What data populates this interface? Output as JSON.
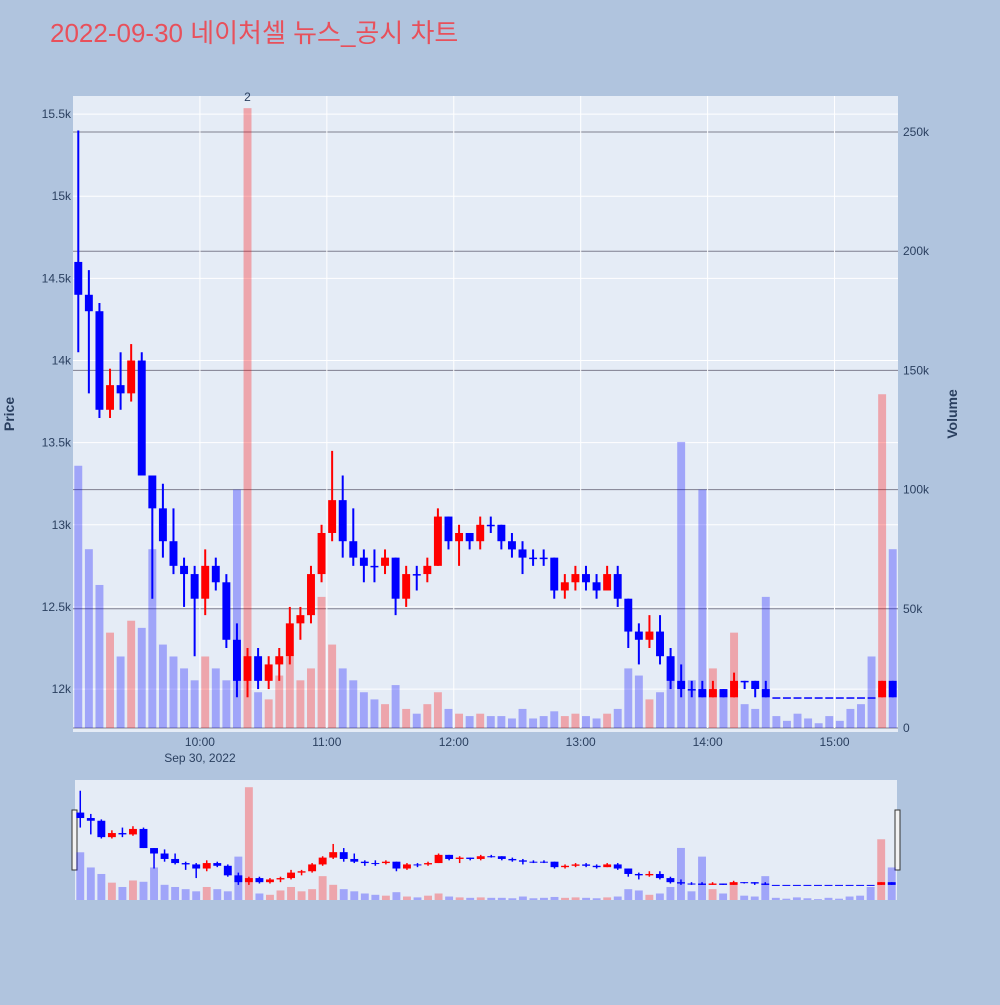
{
  "chart_data": {
    "type": "candlestick",
    "title": "2022-09-30 네이처셀 뉴스_공시 차트",
    "y_label": "Price",
    "y2_label": "Volume",
    "x_date_label": "Sep 30, 2022",
    "up_color": "#ff0000",
    "down_color": "#0000ff",
    "grid": true,
    "rangeslider": true,
    "x": [
      "09:00",
      "09:05",
      "09:10",
      "09:15",
      "09:20",
      "09:25",
      "09:30",
      "09:35",
      "09:40",
      "09:45",
      "09:50",
      "09:55",
      "10:00",
      "10:05",
      "10:10",
      "10:15",
      "10:20",
      "10:25",
      "10:30",
      "10:35",
      "10:40",
      "10:45",
      "10:50",
      "10:55",
      "11:00",
      "11:05",
      "11:10",
      "11:15",
      "11:20",
      "11:25",
      "11:30",
      "11:35",
      "11:40",
      "11:45",
      "11:50",
      "11:55",
      "12:00",
      "12:05",
      "12:10",
      "12:15",
      "12:20",
      "12:25",
      "12:30",
      "12:35",
      "12:40",
      "12:45",
      "12:50",
      "12:55",
      "13:00",
      "13:05",
      "13:10",
      "13:15",
      "13:20",
      "13:25",
      "13:30",
      "13:35",
      "13:40",
      "13:45",
      "13:50",
      "13:55",
      "14:00",
      "14:05",
      "14:10",
      "14:15",
      "14:20",
      "14:25",
      "14:30",
      "14:35",
      "14:40",
      "14:45",
      "14:50",
      "14:55",
      "15:00",
      "15:05",
      "15:10",
      "15:15",
      "15:20",
      "15:25"
    ],
    "open": [
      14600,
      14400,
      14300,
      13700,
      13850,
      13800,
      14000,
      13300,
      13100,
      12900,
      12750,
      12700,
      12550,
      12750,
      12650,
      12300,
      12050,
      12200,
      12050,
      12150,
      12200,
      12400,
      12450,
      12700,
      12950,
      13150,
      12900,
      12800,
      12750,
      12750,
      12800,
      12550,
      12700,
      12700,
      12750,
      13050,
      12900,
      12950,
      12900,
      13000,
      13000,
      12900,
      12850,
      12800,
      12800,
      12800,
      12600,
      12650,
      12700,
      12650,
      12600,
      12700,
      12550,
      12350,
      12300,
      12350,
      12200,
      12050,
      12000,
      12000,
      11950,
      12000,
      11950,
      12050,
      12050,
      12000,
      11950,
      11950,
      11950,
      11950,
      11950,
      11950,
      11950,
      11950,
      11950,
      11950,
      11950,
      12050
    ],
    "high": [
      15400,
      14550,
      14350,
      13950,
      14050,
      14100,
      14050,
      13300,
      13250,
      13100,
      12800,
      12750,
      12850,
      12800,
      12700,
      12400,
      12250,
      12250,
      12200,
      12250,
      12500,
      12500,
      12750,
      13000,
      13450,
      13300,
      13100,
      12850,
      12850,
      12850,
      12800,
      12750,
      12750,
      12800,
      13100,
      13050,
      13000,
      12950,
      13050,
      13050,
      13000,
      12950,
      12900,
      12850,
      12850,
      12800,
      12700,
      12750,
      12750,
      12700,
      12750,
      12750,
      12550,
      12400,
      12450,
      12450,
      12250,
      12150,
      12050,
      12050,
      12050,
      12000,
      12100,
      12050,
      12050,
      12050,
      11950,
      11950,
      11950,
      11950,
      11950,
      11950,
      11950,
      11950,
      11950,
      11950,
      12050,
      12050
    ],
    "low": [
      14050,
      13800,
      13650,
      13650,
      13700,
      13750,
      13300,
      12550,
      12800,
      12700,
      12500,
      12200,
      12450,
      12600,
      12250,
      11950,
      11950,
      12000,
      12000,
      12050,
      12150,
      12300,
      12400,
      12650,
      12900,
      12800,
      12750,
      12650,
      12650,
      12700,
      12450,
      12500,
      12600,
      12650,
      12750,
      12850,
      12750,
      12850,
      12850,
      12950,
      12850,
      12800,
      12700,
      12750,
      12750,
      12550,
      12550,
      12600,
      12600,
      12550,
      12600,
      12500,
      12250,
      12150,
      12250,
      12150,
      12000,
      11950,
      11950,
      11950,
      11950,
      11950,
      11950,
      12000,
      11950,
      11950,
      11950,
      11950,
      11950,
      11950,
      11950,
      11950,
      11950,
      11950,
      11950,
      11950,
      11950,
      11950
    ],
    "close": [
      14400,
      14300,
      13700,
      13850,
      13800,
      14000,
      13300,
      13100,
      12900,
      12750,
      12700,
      12550,
      12750,
      12650,
      12300,
      12050,
      12200,
      12050,
      12150,
      12200,
      12400,
      12450,
      12700,
      12950,
      13150,
      12900,
      12800,
      12750,
      12750,
      12800,
      12550,
      12700,
      12700,
      12750,
      13050,
      12900,
      12950,
      12900,
      13000,
      13000,
      12900,
      12850,
      12800,
      12800,
      12800,
      12600,
      12650,
      12700,
      12650,
      12600,
      12700,
      12550,
      12350,
      12300,
      12350,
      12200,
      12050,
      12000,
      12000,
      11950,
      12000,
      11950,
      12050,
      12050,
      12000,
      11950,
      11950,
      11950,
      11950,
      11950,
      11950,
      11950,
      11950,
      11950,
      11950,
      11950,
      12050,
      11950
    ],
    "volume": [
      110000,
      75000,
      60000,
      40000,
      30000,
      45000,
      42000,
      75000,
      35000,
      30000,
      25000,
      20000,
      30000,
      25000,
      20000,
      100000,
      260000,
      15000,
      12000,
      22000,
      30000,
      20000,
      25000,
      55000,
      35000,
      25000,
      20000,
      15000,
      12000,
      10000,
      18000,
      8000,
      6000,
      10000,
      15000,
      8000,
      6000,
      5000,
      6000,
      5000,
      5000,
      4000,
      8000,
      4000,
      5000,
      7000,
      5000,
      6000,
      5000,
      4000,
      6000,
      8000,
      25000,
      22000,
      12000,
      15000,
      30000,
      120000,
      20000,
      100000,
      25000,
      15000,
      40000,
      10000,
      8000,
      55000,
      5000,
      3000,
      6000,
      4000,
      2000,
      5000,
      3000,
      8000,
      10000,
      30000,
      140000,
      75000
    ],
    "xlim": [
      "09:00",
      "15:30"
    ],
    "xticks": [
      "10:00",
      "11:00",
      "12:00",
      "13:00",
      "14:00",
      "15:00"
    ],
    "ylim": [
      11763,
      15610
    ],
    "yticks": [
      {
        "value": 12000,
        "label": "12k"
      },
      {
        "value": 12500,
        "label": "12.5k"
      },
      {
        "value": 13000,
        "label": "13k"
      },
      {
        "value": 13500,
        "label": "13.5k"
      },
      {
        "value": 14000,
        "label": "14k"
      },
      {
        "value": 14500,
        "label": "14.5k"
      },
      {
        "value": 15000,
        "label": "15k"
      },
      {
        "value": 15500,
        "label": "15.5k"
      }
    ],
    "y2lim": [
      0,
      265100
    ],
    "y2ticks": [
      0,
      {
        "value": 50000,
        "label": "50k"
      },
      {
        "value": 100000,
        "label": "100k"
      },
      {
        "value": 150000,
        "label": "150k"
      },
      {
        "value": 200000,
        "label": "200k"
      },
      {
        "value": 250000,
        "label": "250k"
      }
    ],
    "annotations": [
      {
        "x": "10:20",
        "text": "2"
      }
    ]
  }
}
